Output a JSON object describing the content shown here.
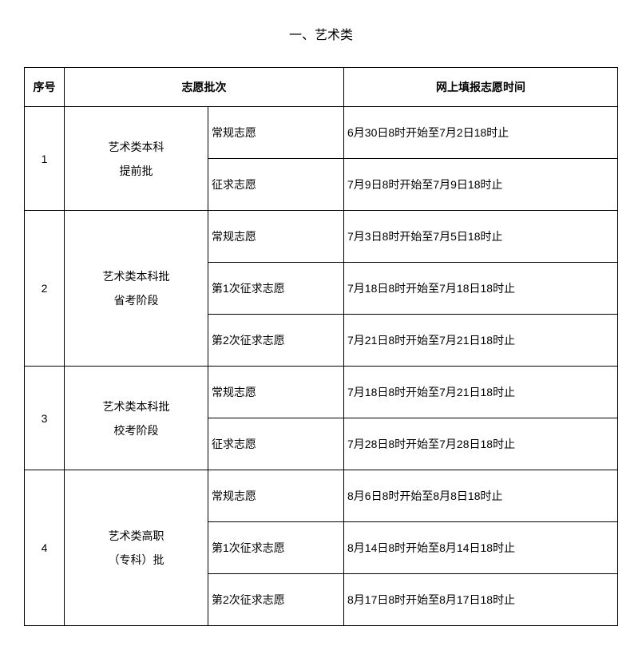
{
  "title": "一、艺术类",
  "headers": {
    "seq": "序号",
    "batch": "志愿批次",
    "time": "网上填报志愿时间"
  },
  "rows": [
    {
      "seq": "1",
      "category": [
        "艺术类本科",
        "提前批"
      ],
      "sub": [
        {
          "type": "常规志愿",
          "time": "6月30日8时开始至7月2日18时止"
        },
        {
          "type": "征求志愿",
          "time": "7月9日8时开始至7月9日18时止"
        }
      ]
    },
    {
      "seq": "2",
      "category": [
        "艺术类本科批",
        "省考阶段"
      ],
      "sub": [
        {
          "type": "常规志愿",
          "time": "7月3日8时开始至7月5日18时止"
        },
        {
          "type": "第1次征求志愿",
          "time": "7月18日8时开始至7月18日18时止"
        },
        {
          "type": "第2次征求志愿",
          "time": "7月21日8时开始至7月21日18时止"
        }
      ]
    },
    {
      "seq": "3",
      "category": [
        "艺术类本科批",
        "校考阶段"
      ],
      "sub": [
        {
          "type": "常规志愿",
          "time": "7月18日8时开始至7月21日18时止"
        },
        {
          "type": "征求志愿",
          "time": "7月28日8时开始至7月28日18时止"
        }
      ]
    },
    {
      "seq": "4",
      "category": [
        "艺术类高职",
        "（专科）批"
      ],
      "sub": [
        {
          "type": "常规志愿",
          "time": "8月6日8时开始至8月8日18时止"
        },
        {
          "type": "第1次征求志愿",
          "time": "8月14日8时开始至8月14日18时止"
        },
        {
          "type": "第2次征求志愿",
          "time": "8月17日8时开始至8月17日18时止"
        }
      ]
    }
  ]
}
